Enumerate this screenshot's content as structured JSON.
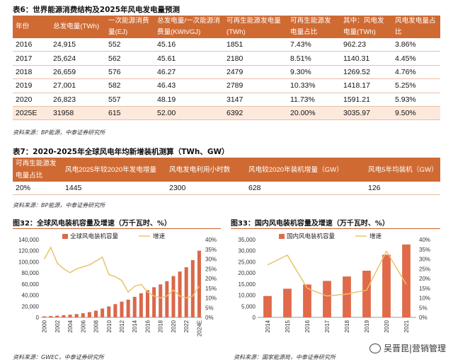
{
  "table6": {
    "caption": "表6：世界能源消费结构及2025年风电发电量预测",
    "headers": [
      "年份",
      "总发电量(TWh)",
      "一次能源消费量(EJ)",
      "总发电量/一次能源消费量(KWh/GJ)",
      "可再生能源发电量(TWh)",
      "可再生能源发电量占比",
      "其中：风电发电量(TWh)",
      "风电发电量占比"
    ],
    "rows": [
      [
        "2016",
        "24,915",
        "552",
        "45.16",
        "1851",
        "7.43%",
        "962.23",
        "3.86%"
      ],
      [
        "2017",
        "25,624",
        "562",
        "45.61",
        "2180",
        "8.51%",
        "1140.31",
        "4.45%"
      ],
      [
        "2018",
        "26,659",
        "576",
        "46.27",
        "2479",
        "9.30%",
        "1269.52",
        "4.76%"
      ],
      [
        "2019",
        "27,001",
        "582",
        "46.43",
        "2789",
        "10.33%",
        "1418.17",
        "5.25%"
      ],
      [
        "2020",
        "26,823",
        "557",
        "48.19",
        "3147",
        "11.73%",
        "1591.21",
        "5.93%"
      ],
      [
        "2025E",
        "31958",
        "615",
        "52.00",
        "6392",
        "20.00%",
        "3035.97",
        "9.50%"
      ]
    ],
    "source": "资料来源：BP能源，中泰证券研究所"
  },
  "table7": {
    "caption": "表7：2020-2025年全球风电年均新增装机测算（TWh、GW）",
    "headers": [
      "可再生能源发电量占比",
      "风电2025年较2020年发电增量",
      "风电发电利用小时数",
      "风电较2020年装机增量（GW）",
      "风电5年均装机（GW）"
    ],
    "row": [
      "20%",
      "1445",
      "2300",
      "628",
      "126"
    ],
    "source": "资料来源：BP能源，中泰证券研究所"
  },
  "chart32": {
    "title": "图32：全球风电装机容量及增速（万千瓦时、%）",
    "source": "资料来源：GWEC，中泰证券研究所",
    "chart_data": {
      "type": "bar",
      "categories": [
        "2000",
        "2001",
        "2002",
        "2003",
        "2004",
        "2005",
        "2006",
        "2007",
        "2008",
        "2009",
        "2010",
        "2011",
        "2012",
        "2013",
        "2014",
        "2015",
        "2016",
        "2017",
        "2018",
        "2019",
        "2020",
        "2021",
        "2022",
        "2023E",
        "2024E"
      ],
      "x_tick_labels": [
        "2000",
        "2002",
        "2004",
        "2006",
        "2008",
        "2010",
        "2012",
        "2014",
        "2016",
        "2018",
        "2020",
        "2022",
        "2024E"
      ],
      "series": [
        {
          "name": "全球风电装机容量",
          "type": "bar",
          "axis": "left",
          "color": "#d9684a",
          "values": [
            1800,
            2400,
            3100,
            3900,
            4800,
            5900,
            7400,
            9400,
            12100,
            15900,
            19700,
            23800,
            28300,
            31900,
            36900,
            43300,
            48900,
            54200,
            59300,
            65100,
            74300,
            82500,
            90200,
            103000,
            120000
          ]
        },
        {
          "name": "增速",
          "type": "line",
          "axis": "right",
          "color": "#e8c36b",
          "values": [
            30,
            36,
            28,
            25,
            23,
            25,
            26,
            27,
            29,
            31,
            22,
            21,
            19,
            13,
            16,
            17,
            13,
            11,
            10,
            11,
            14,
            11,
            10,
            11,
            16
          ]
        }
      ],
      "y_left": {
        "min": 0,
        "max": 140000,
        "ticks": [
          "0",
          "20,000",
          "40,000",
          "60,000",
          "80,000",
          "100,000",
          "120,000",
          "140,000"
        ]
      },
      "y_right": {
        "min": 0,
        "max": 40,
        "ticks": [
          "0%",
          "5%",
          "10%",
          "15%",
          "20%",
          "25%",
          "30%",
          "35%",
          "40%"
        ]
      },
      "legend": "top"
    }
  },
  "chart33": {
    "title": "图33：国内风电装机容量及增速（万千瓦时、%）",
    "source": "资料来源：国家能源局，中泰证券研究所",
    "chart_data": {
      "type": "bar",
      "categories": [
        "2014",
        "2015",
        "2016",
        "2017",
        "2018",
        "2019",
        "2020",
        "2021"
      ],
      "series": [
        {
          "name": "国内风电装机容量",
          "type": "bar",
          "axis": "left",
          "color": "#e06a4a",
          "values": [
            9600,
            12900,
            14800,
            16400,
            18400,
            21000,
            28200,
            32800
          ]
        },
        {
          "name": "增速",
          "type": "line",
          "axis": "right",
          "color": "#e8c36b",
          "values": [
            27,
            32,
            15,
            11,
            12,
            14,
            34,
            17
          ]
        }
      ],
      "y_left": {
        "min": 0,
        "max": 35000,
        "ticks": [
          "0",
          "5,000",
          "10,000",
          "15,000",
          "20,000",
          "25,000",
          "30,000",
          "35,000"
        ]
      },
      "y_right": {
        "min": 0,
        "max": 40,
        "ticks": [
          "0%",
          "5%",
          "10%",
          "15%",
          "20%",
          "25%",
          "30%",
          "35%",
          "40%"
        ]
      },
      "legend": "top"
    }
  },
  "watermark": "吴晋昆|营销管理"
}
